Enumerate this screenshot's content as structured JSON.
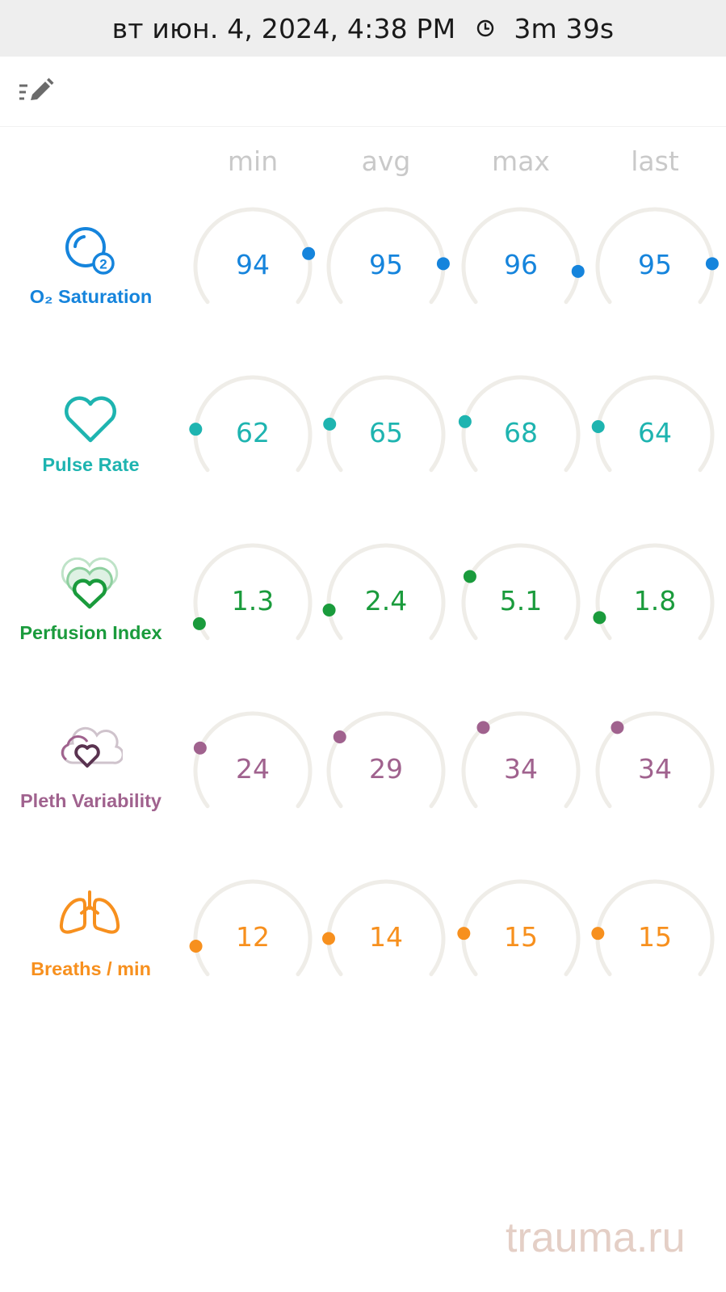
{
  "status_bar": {
    "datetime": "вт июн. 4, 2024, 4:38 PM",
    "duration": "3m 39s",
    "clock_icon": "clock-icon"
  },
  "toolbar": {
    "edit_icon": "edit-list-icon"
  },
  "columns": [
    "min",
    "avg",
    "max",
    "last"
  ],
  "gauge_range_note": "Dot position on each arc shows the value within the metric range",
  "metrics": [
    {
      "key": "o2",
      "label": "O₂ Saturation",
      "icon": "oxygen-bubble-icon",
      "color": "#1584dc",
      "range": [
        70,
        100
      ],
      "values": [
        "94",
        "95",
        "96",
        "95"
      ],
      "positions": [
        0.8,
        0.84,
        0.87,
        0.84
      ]
    },
    {
      "key": "pulse",
      "label": "Pulse Rate",
      "icon": "heart-icon",
      "color": "#1eb4b0",
      "range": [
        25,
        240
      ],
      "values": [
        "62",
        "65",
        "68",
        "64"
      ],
      "positions": [
        0.17,
        0.19,
        0.2,
        0.18
      ]
    },
    {
      "key": "pi",
      "label": "Perfusion Index",
      "icon": "layered-heart-icon",
      "color": "#1a9b3c",
      "range": [
        0,
        20
      ],
      "values": [
        "1.3",
        "2.4",
        "5.1",
        "1.8"
      ],
      "positions": [
        0.065,
        0.12,
        0.255,
        0.09
      ]
    },
    {
      "key": "pvi",
      "label": "Pleth Variability",
      "icon": "cloud-heart-icon",
      "color": "#a0628e",
      "range": [
        0,
        100
      ],
      "values": [
        "24",
        "29",
        "34",
        "34"
      ],
      "positions": [
        0.24,
        0.29,
        0.34,
        0.34
      ]
    },
    {
      "key": "rr",
      "label": "Breaths / min",
      "icon": "lungs-icon",
      "color": "#f7901e",
      "range": [
        4,
        70
      ],
      "values": [
        "12",
        "14",
        "15",
        "15"
      ],
      "positions": [
        0.12,
        0.15,
        0.17,
        0.17
      ]
    }
  ],
  "watermark": "trauma.ru"
}
